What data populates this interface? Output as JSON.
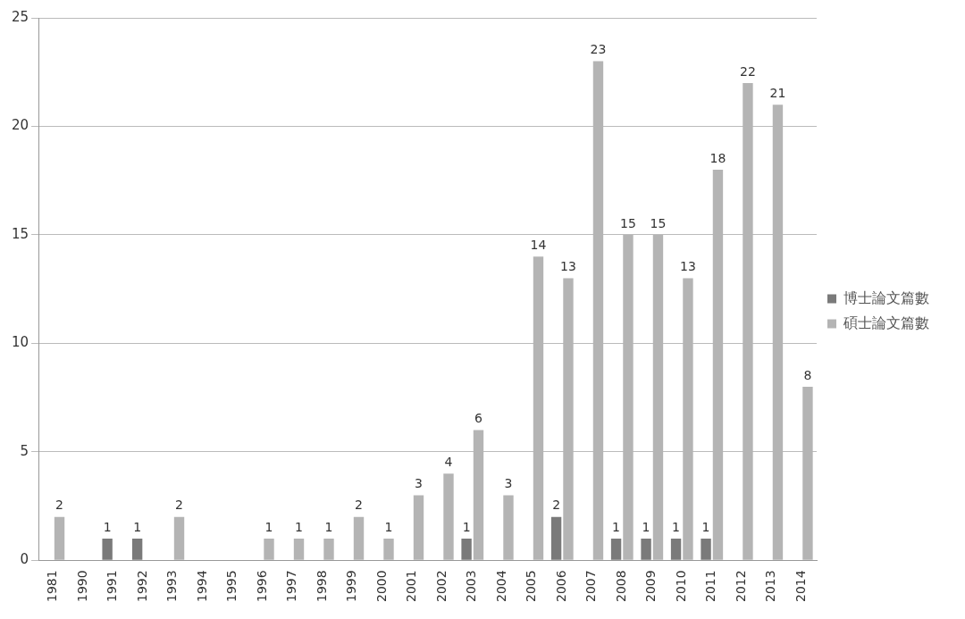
{
  "chart_data": {
    "type": "bar",
    "categories": [
      "1981",
      "1990",
      "1991",
      "1992",
      "1993",
      "1994",
      "1995",
      "1996",
      "1997",
      "1998",
      "1999",
      "2000",
      "2001",
      "2002",
      "2003",
      "2004",
      "2005",
      "2006",
      "2007",
      "2008",
      "2009",
      "2010",
      "2011",
      "2012",
      "2013",
      "2014"
    ],
    "series": [
      {
        "name": "博士論文篇數",
        "color": "#7a7a7a",
        "values": [
          null,
          null,
          1,
          1,
          null,
          null,
          null,
          null,
          null,
          null,
          null,
          null,
          null,
          null,
          1,
          null,
          null,
          2,
          null,
          1,
          1,
          1,
          1,
          null,
          null,
          null
        ]
      },
      {
        "name": "碩士論文篇數",
        "color": "#b4b4b4",
        "values": [
          2,
          null,
          null,
          null,
          2,
          null,
          null,
          1,
          1,
          1,
          2,
          1,
          3,
          4,
          6,
          3,
          14,
          13,
          23,
          15,
          15,
          13,
          18,
          22,
          21,
          8
        ]
      }
    ],
    "ylim": [
      0,
      25
    ],
    "yticks": [
      0,
      5,
      10,
      15,
      20,
      25
    ],
    "grid": true,
    "legend": "right",
    "data_labels": true
  }
}
